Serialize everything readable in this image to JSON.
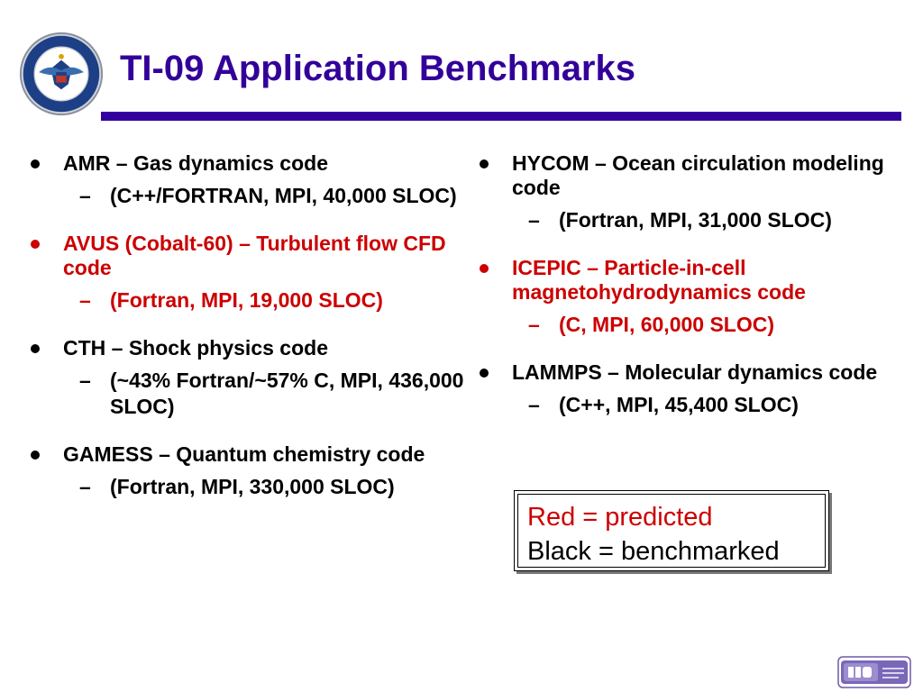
{
  "slide": {
    "title": "TI-09 Application Benchmarks",
    "logos": {
      "seal": "department-of-defense-seal",
      "hpc": "hpc-logo"
    }
  },
  "left_column": [
    {
      "text": "AMR – Gas dynamics code",
      "sub": "(C++/FORTRAN, MPI, 40,000 SLOC)",
      "status": "benchmarked"
    },
    {
      "text": "AVUS (Cobalt-60) – Turbulent flow CFD code",
      "sub": "(Fortran, MPI, 19,000 SLOC)",
      "status": "predicted"
    },
    {
      "text": "CTH – Shock physics code",
      "sub": "(~43% Fortran/~57% C, MPI, 436,000 SLOC)",
      "status": "benchmarked"
    },
    {
      "text": "GAMESS – Quantum chemistry code",
      "sub": "(Fortran, MPI, 330,000 SLOC)",
      "status": "benchmarked"
    }
  ],
  "right_column": [
    {
      "text": "HYCOM – Ocean circulation modeling code",
      "sub": "(Fortran, MPI, 31,000 SLOC)",
      "status": "benchmarked"
    },
    {
      "text": "ICEPIC – Particle-in-cell magnetohydrodynamics code",
      "sub": "(C, MPI, 60,000 SLOC)",
      "status": "predicted"
    },
    {
      "text": "LAMMPS – Molecular dynamics code",
      "sub": "(C++, MPI, 45,400 SLOC)",
      "status": "benchmarked"
    }
  ],
  "legend": {
    "predicted": "Red = predicted",
    "benchmarked": "Black = benchmarked"
  },
  "colors": {
    "title": "#330099",
    "rule": "#3300a0",
    "predicted": "#cc0000",
    "benchmarked": "#000000"
  },
  "bullet_glyph": "●",
  "sub_glyph": "–"
}
